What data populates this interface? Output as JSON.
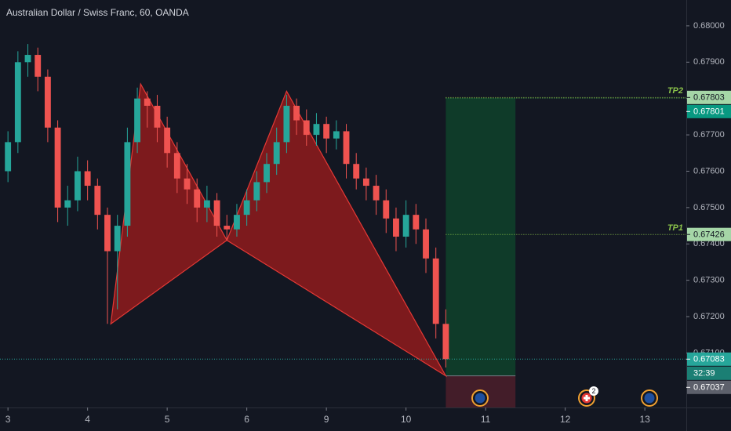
{
  "chart_data": {
    "type": "candlestick",
    "title": "Australian Dollar / Swiss Franc, 60, OANDA",
    "x": [
      0,
      3,
      6,
      9,
      12,
      15,
      18,
      21,
      24,
      27,
      30,
      33,
      36,
      39,
      42,
      45,
      48,
      51,
      54,
      57,
      60,
      63,
      66,
      69,
      72,
      75,
      78,
      81,
      84,
      87,
      90,
      93,
      96,
      99,
      102,
      105,
      108,
      111,
      114,
      117,
      120,
      123,
      126,
      129,
      132
    ],
    "open": [
      0.676,
      0.6768,
      0.679,
      0.6792,
      0.6786,
      0.6772,
      0.675,
      0.6752,
      0.676,
      0.6756,
      0.6748,
      0.6738,
      0.6745,
      0.6768,
      0.678,
      0.6778,
      0.6772,
      0.6765,
      0.6758,
      0.6755,
      0.675,
      0.6752,
      0.6745,
      0.6744,
      0.6748,
      0.6752,
      0.6757,
      0.6762,
      0.6768,
      0.6778,
      0.6774,
      0.677,
      0.6773,
      0.6769,
      0.6771,
      0.6762,
      0.6758,
      0.6756,
      0.6752,
      0.6747,
      0.6742,
      0.6748,
      0.6744,
      0.6736,
      0.6718
    ],
    "high": [
      0.6771,
      0.6793,
      0.6795,
      0.6794,
      0.6788,
      0.6774,
      0.6756,
      0.6764,
      0.6763,
      0.6758,
      0.675,
      0.6748,
      0.6772,
      0.6783,
      0.6782,
      0.6781,
      0.6775,
      0.6768,
      0.6762,
      0.6758,
      0.6756,
      0.6754,
      0.6748,
      0.6751,
      0.6755,
      0.676,
      0.6765,
      0.6772,
      0.6781,
      0.678,
      0.6777,
      0.6776,
      0.6775,
      0.6774,
      0.6773,
      0.6765,
      0.6761,
      0.6759,
      0.6755,
      0.675,
      0.6752,
      0.6751,
      0.6747,
      0.6739,
      0.6722
    ],
    "low": [
      0.6757,
      0.6765,
      0.6786,
      0.6782,
      0.6768,
      0.6746,
      0.6745,
      0.6749,
      0.6752,
      0.6744,
      0.6718,
      0.6722,
      0.6742,
      0.6765,
      0.6772,
      0.6768,
      0.6761,
      0.6754,
      0.6751,
      0.6746,
      0.6746,
      0.6742,
      0.6741,
      0.6742,
      0.6745,
      0.6749,
      0.6754,
      0.6759,
      0.6765,
      0.677,
      0.6767,
      0.6767,
      0.6765,
      0.6766,
      0.6758,
      0.6755,
      0.6752,
      0.6748,
      0.6743,
      0.6738,
      0.6739,
      0.674,
      0.6732,
      0.6714,
      0.6706
    ],
    "close": [
      0.6768,
      0.679,
      0.6792,
      0.6786,
      0.6772,
      0.675,
      0.6752,
      0.676,
      0.6756,
      0.6748,
      0.6738,
      0.6745,
      0.6768,
      0.678,
      0.6778,
      0.6772,
      0.6765,
      0.6758,
      0.6755,
      0.675,
      0.6752,
      0.6745,
      0.6744,
      0.6748,
      0.6752,
      0.6757,
      0.6762,
      0.6768,
      0.6778,
      0.6774,
      0.677,
      0.6773,
      0.6769,
      0.6771,
      0.6762,
      0.6758,
      0.6756,
      0.6752,
      0.6747,
      0.6742,
      0.6748,
      0.6744,
      0.6736,
      0.6718,
      0.67083
    ],
    "up_color": "#26a69a",
    "down_color": "#ef5350",
    "xlim": [
      -2.4,
      204.5
    ],
    "xticks": [
      {
        "value": 0,
        "label": "3"
      },
      {
        "value": 24,
        "label": "4"
      },
      {
        "value": 48,
        "label": "5"
      },
      {
        "value": 72,
        "label": "6"
      },
      {
        "value": 96,
        "label": "9"
      },
      {
        "value": 120,
        "label": "10"
      },
      {
        "value": 144,
        "label": "11"
      },
      {
        "value": 168,
        "label": "12"
      },
      {
        "value": 192,
        "label": "13"
      }
    ],
    "ylim": [
      0.6695,
      0.68071
    ],
    "yticks": [
      {
        "value": 0.68,
        "label": "0.68000"
      },
      {
        "value": 0.679,
        "label": "0.67900"
      },
      {
        "value": 0.678,
        "label": "0.67800"
      },
      {
        "value": 0.677,
        "label": "0.67700"
      },
      {
        "value": 0.676,
        "label": "0.67600"
      },
      {
        "value": 0.675,
        "label": "0.67500"
      },
      {
        "value": 0.674,
        "label": "0.67400"
      },
      {
        "value": 0.673,
        "label": "0.67300"
      },
      {
        "value": 0.672,
        "label": "0.67200"
      },
      {
        "value": 0.671,
        "label": "0.67100"
      }
    ],
    "pattern": {
      "x": [
        31,
        40,
        66,
        84,
        132
      ],
      "y": [
        0.6718,
        0.6784,
        0.6741,
        0.6782,
        0.67037
      ],
      "color": "#b71c1c"
    },
    "position": {
      "start": 132,
      "end": 153,
      "entry": 0.67037,
      "target": 0.67801,
      "stop": 0.6695
    },
    "levels": [
      {
        "name": "TP2",
        "value": 0.67803
      },
      {
        "name": "TP1",
        "value": 0.67426
      }
    ],
    "countdown": "32:39",
    "event_badge": "2"
  }
}
